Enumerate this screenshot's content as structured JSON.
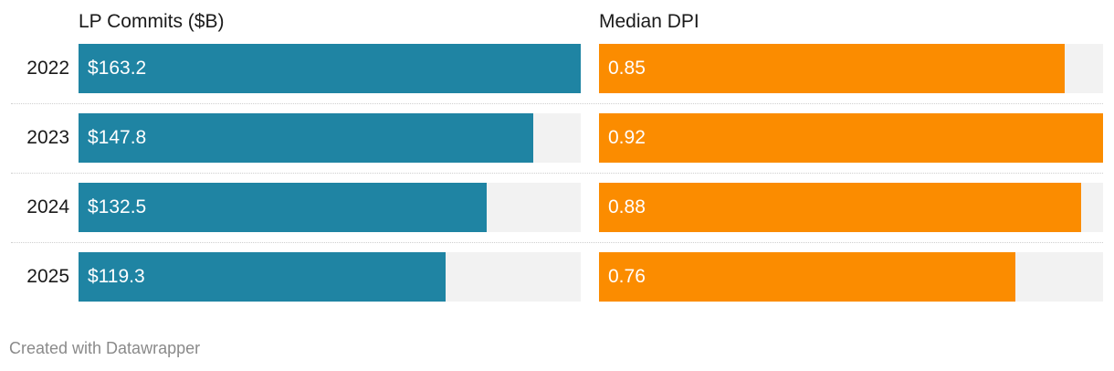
{
  "chart_data": {
    "type": "bar",
    "categories": [
      "2022",
      "2023",
      "2024",
      "2025"
    ],
    "series": [
      {
        "name": "LP Commits ($B)",
        "values": [
          163.2,
          147.8,
          132.5,
          119.3
        ],
        "labels": [
          "$163.2",
          "$147.8",
          "$132.5",
          "$119.3"
        ],
        "color": "#1f84a3",
        "xlim": [
          0,
          163.2
        ]
      },
      {
        "name": "Median DPI",
        "values": [
          0.85,
          0.92,
          0.88,
          0.76
        ],
        "labels": [
          "0.85",
          "0.92",
          "0.88",
          "0.76"
        ],
        "color": "#fb8c00",
        "xlim": [
          0,
          0.92
        ]
      }
    ],
    "grid": false,
    "legend": "none"
  },
  "footer": "Created with Datawrapper"
}
